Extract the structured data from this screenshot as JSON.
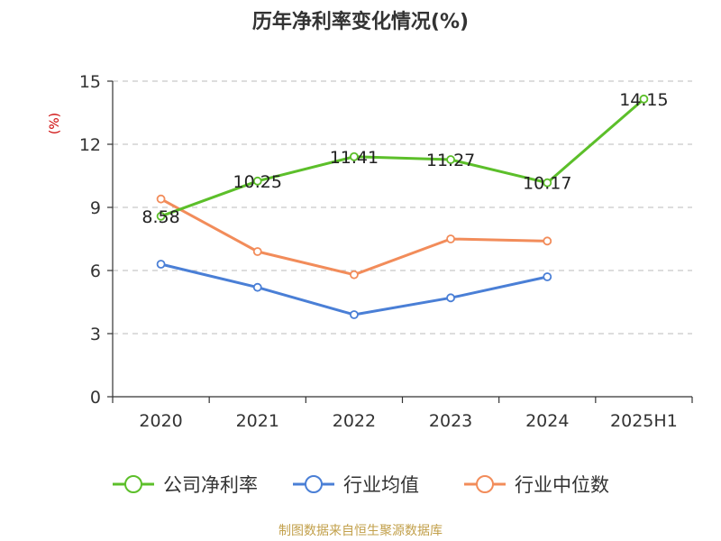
{
  "chart_data": {
    "type": "line",
    "title": "历年净利率变化情况(%)",
    "ylabel": "(%)",
    "xlabel": "",
    "categories": [
      "2020",
      "2021",
      "2022",
      "2023",
      "2024",
      "2025H1"
    ],
    "ylim": [
      0,
      15
    ],
    "yticks": [
      0,
      3,
      6,
      9,
      12,
      15
    ],
    "grid": true,
    "legend_position": "bottom",
    "series": [
      {
        "name": "公司净利率",
        "color": "#5cbf2a",
        "values": [
          8.58,
          10.25,
          11.41,
          11.27,
          10.17,
          14.15
        ],
        "labels": [
          "8.58",
          "10.25",
          "11.41",
          "11.27",
          "10.17",
          "14.15"
        ]
      },
      {
        "name": "行业均值",
        "color": "#4a7fd6",
        "values": [
          6.3,
          5.2,
          3.9,
          4.7,
          5.7,
          null
        ]
      },
      {
        "name": "行业中位数",
        "color": "#f28c5a",
        "values": [
          9.4,
          6.9,
          5.8,
          7.5,
          7.4,
          null
        ]
      }
    ]
  },
  "source": "制图数据来自恒生聚源数据库"
}
